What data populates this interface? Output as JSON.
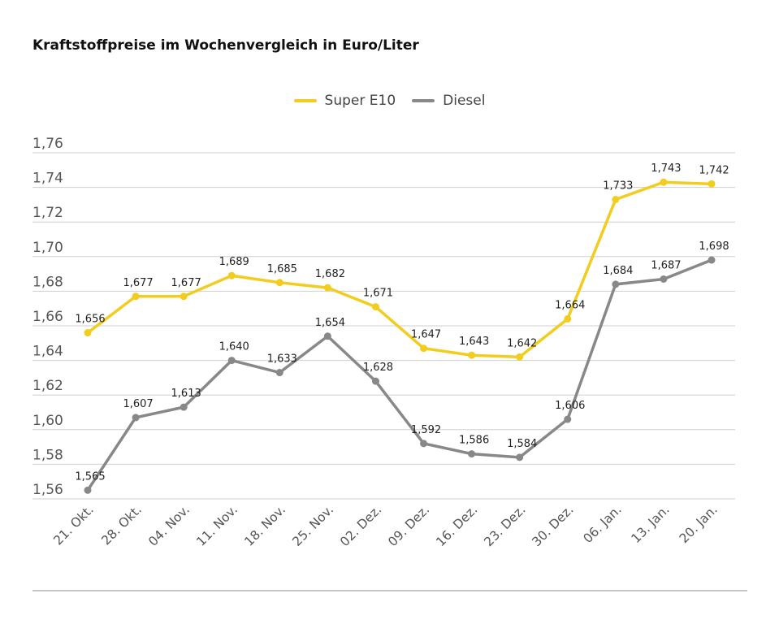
{
  "chart_data": {
    "type": "line",
    "title": "Kraftstoffpreise im Wochenvergleich in Euro/Liter",
    "categories": [
      "21. Okt.",
      "28. Okt.",
      "04. Nov.",
      "11. Nov.",
      "18. Nov.",
      "25. Nov.",
      "02. Dez.",
      "09. Dez.",
      "16. Dez.",
      "23. Dez.",
      "30. Dez.",
      "06. Jan.",
      "13. Jan.",
      "20. Jan."
    ],
    "series": [
      {
        "name": "Super E10",
        "color": "#f2cd1f",
        "values": [
          1.656,
          1.677,
          1.677,
          1.689,
          1.685,
          1.682,
          1.671,
          1.647,
          1.643,
          1.642,
          1.664,
          1.733,
          1.743,
          1.742
        ],
        "labels": [
          "1,656",
          "1,677",
          "1,677",
          "1,689",
          "1,685",
          "1,682",
          "1,671",
          "1,647",
          "1,643",
          "1,642",
          "1,664",
          "1,733",
          "1,743",
          "1,742"
        ]
      },
      {
        "name": "Diesel",
        "color": "#888888",
        "values": [
          1.565,
          1.607,
          1.613,
          1.64,
          1.633,
          1.654,
          1.628,
          1.592,
          1.586,
          1.584,
          1.606,
          1.684,
          1.687,
          1.698
        ],
        "labels": [
          "1,565",
          "1,607",
          "1,613",
          "1,640",
          "1,633",
          "1,654",
          "1,628",
          "1,592",
          "1,586",
          "1,584",
          "1,606",
          "1,684",
          "1,687",
          "1,698"
        ]
      }
    ],
    "y_ticks": [
      1.56,
      1.58,
      1.6,
      1.62,
      1.64,
      1.66,
      1.68,
      1.7,
      1.72,
      1.74,
      1.76
    ],
    "y_tick_labels": [
      "1,56",
      "1,58",
      "1,60",
      "1,62",
      "1,64",
      "1,66",
      "1,68",
      "1,70",
      "1,72",
      "1,74",
      "1,76"
    ],
    "ylim": [
      1.555,
      1.765
    ],
    "grid": true,
    "legend_position": "top-center",
    "xlabel": "",
    "ylabel": ""
  },
  "legend": {
    "super_label": "Super E10",
    "diesel_label": "Diesel"
  }
}
